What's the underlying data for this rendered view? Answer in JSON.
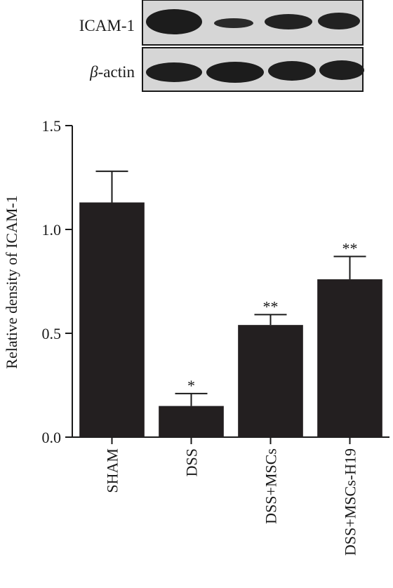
{
  "blot": {
    "rows": [
      {
        "label_main": "ICAM-1",
        "label_italic": "",
        "label_rest": ""
      },
      {
        "label_main": "",
        "label_italic": "β",
        "label_rest": "-actin"
      }
    ]
  },
  "colors": {
    "bar": "#231f20",
    "blot_bg": "#d6d6d6",
    "band": "#1c1c1c",
    "axis": "#1a1a1a"
  },
  "chart_data": {
    "type": "bar",
    "title": "",
    "xlabel": "",
    "ylabel": "Relative density of ICAM-1",
    "categories": [
      "SHAM",
      "DSS",
      "DSS+MSCs",
      "DSS+MSCs-H19"
    ],
    "values": [
      1.13,
      0.15,
      0.54,
      0.76
    ],
    "error": [
      0.15,
      0.06,
      0.05,
      0.11
    ],
    "significance": [
      "",
      "*",
      "**",
      "**"
    ],
    "ylim": [
      0,
      1.5
    ],
    "yticks": [
      0.0,
      0.5,
      1.0,
      1.5
    ],
    "ytick_labels": [
      "0.0",
      "0.5",
      "1.0",
      "1.5"
    ],
    "grid": false
  }
}
